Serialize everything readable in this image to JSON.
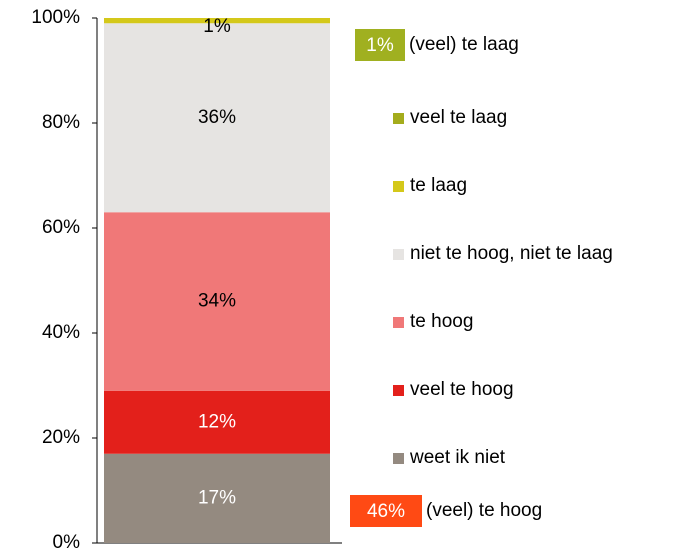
{
  "chart_data": {
    "type": "stacked_bar",
    "categories": [
      null
    ],
    "series": [
      {
        "name": "weet ik niet",
        "color": "#948a80",
        "values": [
          17
        ],
        "value_labels": [
          "17%"
        ]
      },
      {
        "name": "veel te hoog",
        "color": "#e3201b",
        "values": [
          12
        ],
        "value_labels": [
          "12%"
        ]
      },
      {
        "name": "te hoog",
        "color": "#f07878",
        "values": [
          34
        ],
        "value_labels": [
          "34%"
        ]
      },
      {
        "name": "niet te hoog, niet te laag",
        "color": "#e6e4e2",
        "values": [
          36
        ],
        "value_labels": [
          "36%"
        ]
      },
      {
        "name": "te laag",
        "color": "#d4c81a",
        "values": [
          1
        ],
        "value_labels": [
          "1%"
        ]
      },
      {
        "name": "veel te laag",
        "color": "#a4ac1c",
        "values": [
          0
        ],
        "value_labels": [
          null
        ]
      }
    ],
    "ylim": [
      0,
      100
    ],
    "yticks": [
      {
        "value": 0,
        "label": "0%"
      },
      {
        "value": 20,
        "label": "20%"
      },
      {
        "value": 40,
        "label": "40%"
      },
      {
        "value": 60,
        "label": "60%"
      },
      {
        "value": 80,
        "label": "80%"
      },
      {
        "value": 100,
        "label": "100%"
      }
    ],
    "legend": "right",
    "annotations": [
      {
        "label": "1%",
        "text": "(veel) te laag",
        "color": "#a0b020",
        "position": "top"
      },
      {
        "label": "46%",
        "text": "(veel) te hoog",
        "color": "#ff4a14",
        "position": "bottom"
      }
    ]
  }
}
